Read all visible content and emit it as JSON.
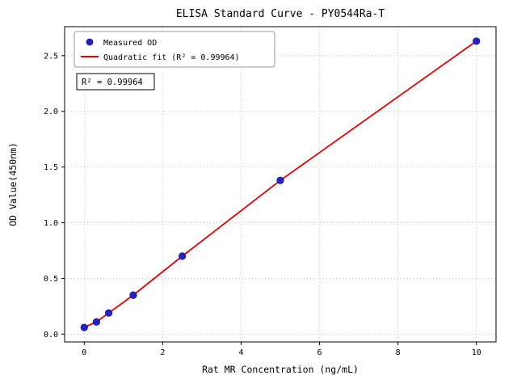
{
  "chart_data": {
    "type": "scatter",
    "title": "ELISA Standard Curve - PY0544Ra-T",
    "xlabel": "Rat MR Concentration (ng/mL)",
    "ylabel": "OD Value(450nm)",
    "xlim": [
      -0.5,
      10.5
    ],
    "ylim": [
      -0.07,
      2.76
    ],
    "xticks": [
      0,
      2,
      4,
      6,
      8,
      10
    ],
    "yticks": [
      0.0,
      0.5,
      1.0,
      1.5,
      2.0,
      2.5
    ],
    "grid": true,
    "legend_position": "upper left",
    "series": [
      {
        "name": "Measured OD",
        "type": "scatter",
        "color": "#2222cc",
        "x": [
          0,
          0.3125,
          0.625,
          1.25,
          2.5,
          5,
          10
        ],
        "y": [
          0.06,
          0.11,
          0.19,
          0.35,
          0.7,
          1.38,
          2.63
        ]
      },
      {
        "name": "Quadratic fit (R² = 0.99964)",
        "type": "line",
        "color": "#e60000"
      }
    ],
    "annotation": "R² = 0.99964",
    "colors": {
      "grid": "#b8b8b8",
      "axis": "#000000",
      "background": "#ffffff"
    }
  }
}
